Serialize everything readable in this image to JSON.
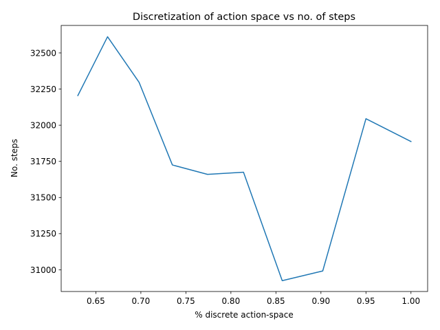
{
  "chart_data": {
    "type": "line",
    "title": "Discretization of action space vs no. of steps",
    "xlabel": "% discrete action-space",
    "ylabel": "No. steps",
    "xlim": [
      0.6115,
      1.0185
    ],
    "ylim": [
      30850,
      32690
    ],
    "xticks": [
      0.65,
      0.7,
      0.75,
      0.8,
      0.85,
      0.9,
      0.95,
      1.0
    ],
    "xtick_labels": [
      "0.65",
      "0.70",
      "0.75",
      "0.80",
      "0.85",
      "0.90",
      "0.95",
      "1.00"
    ],
    "yticks": [
      31000,
      31250,
      31500,
      31750,
      32000,
      32250,
      32500
    ],
    "ytick_labels": [
      "31000",
      "31250",
      "31500",
      "31750",
      "32000",
      "32250",
      "32500"
    ],
    "grid": false,
    "legend": "none",
    "series": [
      {
        "color": "#1f77b4",
        "x": [
          0.63,
          0.663,
          0.698,
          0.735,
          0.774,
          0.814,
          0.857,
          0.902,
          0.95,
          1.0
        ],
        "y": [
          32205,
          32612,
          32297,
          31725,
          31660,
          31675,
          30925,
          30992,
          32045,
          31887
        ]
      }
    ]
  }
}
